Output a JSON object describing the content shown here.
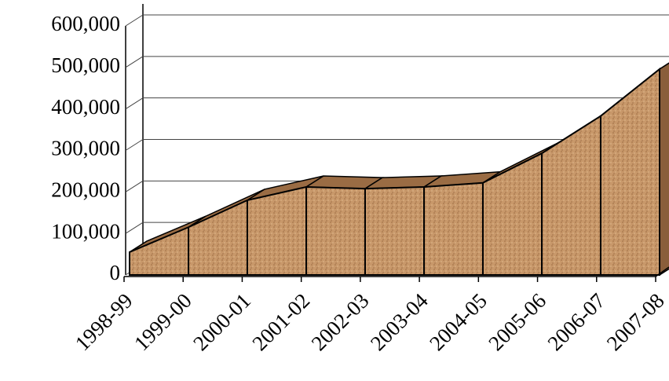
{
  "chart_data": {
    "type": "area",
    "categories": [
      "1998-99",
      "1999-00",
      "2000-01",
      "2001-02",
      "2002-03",
      "2003-04",
      "2004-05",
      "2005-06",
      "2006-07",
      "2007-08"
    ],
    "values": [
      55000,
      115000,
      180000,
      212000,
      208000,
      212000,
      222000,
      293000,
      383000,
      496000
    ],
    "color": "#c8986a",
    "ylim": [
      0,
      600000
    ],
    "yticks": [
      0,
      {
        "value": 100000,
        "label": "100,000"
      },
      {
        "value": 200000,
        "label": "200,000"
      },
      {
        "value": 300000,
        "label": "300,000"
      },
      {
        "value": 400000,
        "label": "400,000"
      },
      {
        "value": 500000,
        "label": "500,000"
      },
      {
        "value": 600000,
        "label": "600,000"
      }
    ],
    "grid": true
  }
}
